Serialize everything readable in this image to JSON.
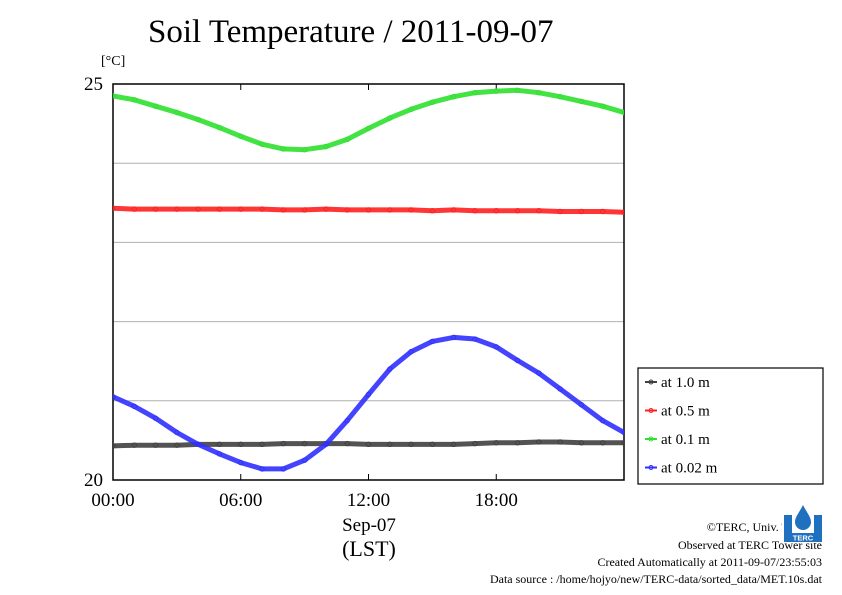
{
  "chart_data": {
    "type": "line",
    "title": "Soil Temperature / 2011-09-07",
    "ylabel_unit": "[°C]",
    "xlabel_date": "Sep-07",
    "xlabel": "(LST)",
    "ylim": [
      20,
      25
    ],
    "xlim_hours": [
      0,
      24
    ],
    "y_tick_labels": [
      "20",
      "25"
    ],
    "y_grid_values": [
      21,
      22,
      23,
      24
    ],
    "x_tick_labels": [
      "00:00",
      "06:00",
      "12:00",
      "18:00"
    ],
    "x_ticks_hours": [
      0,
      6,
      12,
      18
    ],
    "grid": true,
    "legend_position": "right",
    "x_hours": [
      0,
      1,
      2,
      3,
      4,
      5,
      6,
      7,
      8,
      9,
      10,
      11,
      12,
      13,
      14,
      15,
      16,
      17,
      18,
      19,
      20,
      21,
      22,
      23,
      24
    ],
    "series": [
      {
        "name": "at 1.0 m",
        "color": "#404040",
        "values": [
          20.43,
          20.44,
          20.44,
          20.44,
          20.45,
          20.45,
          20.45,
          20.45,
          20.46,
          20.46,
          20.46,
          20.46,
          20.45,
          20.45,
          20.45,
          20.45,
          20.45,
          20.46,
          20.47,
          20.47,
          20.48,
          20.48,
          20.47,
          20.47,
          20.47
        ]
      },
      {
        "name": "at 0.5 m",
        "color": "#ff2020",
        "values": [
          23.43,
          23.42,
          23.42,
          23.42,
          23.42,
          23.42,
          23.42,
          23.42,
          23.41,
          23.41,
          23.42,
          23.41,
          23.41,
          23.41,
          23.41,
          23.4,
          23.41,
          23.4,
          23.4,
          23.4,
          23.4,
          23.39,
          23.39,
          23.39,
          23.38
        ]
      },
      {
        "name": "at 0.1 m",
        "color": "#30e030",
        "values": [
          24.85,
          24.8,
          24.72,
          24.64,
          24.55,
          24.45,
          24.34,
          24.24,
          24.18,
          24.17,
          24.21,
          24.3,
          24.44,
          24.57,
          24.68,
          24.77,
          24.84,
          24.89,
          24.91,
          24.92,
          24.89,
          24.84,
          24.78,
          24.72,
          24.64
        ]
      },
      {
        "name": "at 0.02 m",
        "color": "#3030ff",
        "values": [
          21.05,
          20.93,
          20.78,
          20.6,
          20.45,
          20.33,
          20.22,
          20.14,
          20.14,
          20.25,
          20.45,
          20.75,
          21.08,
          21.4,
          21.62,
          21.75,
          21.8,
          21.78,
          21.68,
          21.51,
          21.35,
          21.15,
          20.95,
          20.75,
          20.6
        ]
      }
    ]
  },
  "footer": {
    "copyright": "©TERC, Univ. Tsukuba",
    "site": "Observed at TERC Tower site",
    "created": "Created Automatically at 2011-09-07/23:55:03",
    "source": "Data source : /home/hojyo/new/TERC-data/sorted_data/MET.10s.dat"
  },
  "logo": {
    "text": "TERC",
    "color": "#2070c0"
  }
}
